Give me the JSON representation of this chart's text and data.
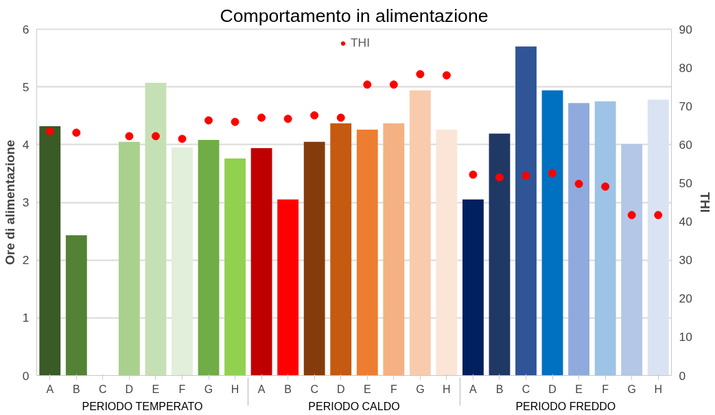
{
  "chart_data": {
    "type": "bar",
    "title": "Comportamento in alimentazione",
    "categories": [
      "A",
      "B",
      "C",
      "D",
      "E",
      "F",
      "G",
      "H",
      "A",
      "B",
      "C",
      "D",
      "E",
      "F",
      "G",
      "H",
      "A",
      "B",
      "C",
      "D",
      "E",
      "F",
      "G",
      "H"
    ],
    "annotations": [
      "PERIODO TEMPERATO",
      "PERIODO CALDO",
      "PERIODO FREDDO"
    ],
    "ylabel": "Ore di alimentazione",
    "y2label": "THI",
    "ylim": [
      0,
      6
    ],
    "yticks": [
      0,
      1,
      2,
      3,
      4,
      5,
      6
    ],
    "y2lim": [
      0,
      90
    ],
    "y2ticks": [
      0,
      10,
      20,
      30,
      40,
      50,
      60,
      70,
      80,
      90
    ],
    "grid": "y",
    "legend": "top",
    "series": [
      {
        "colors": [
          "#3a5a26",
          "#548235",
          "#a9d18e",
          "#a9d18e",
          "#c5e0b4",
          "#e2efda",
          "#70ad47",
          "#92d050",
          "#c00000",
          "#ff0000",
          "#843c0c",
          "#c55a11",
          "#ed7d31",
          "#f4b183",
          "#f8cbad",
          "#fbe5d6",
          "#002060",
          "#203864",
          "#2f5597",
          "#0070c0",
          "#8faadc",
          "#9dc3e6",
          "#b4c7e7",
          "#dae3f3"
        ],
        "values": [
          4.32,
          2.43,
          null,
          4.05,
          5.07,
          3.95,
          4.08,
          3.76,
          3.94,
          3.05,
          4.05,
          4.37,
          4.26,
          4.37,
          4.94,
          4.26,
          3.05,
          4.19,
          5.7,
          4.94,
          4.72,
          4.75,
          4.01,
          4.78
        ]
      },
      {
        "type": "scatter",
        "name": "THI",
        "color": "#ff0000",
        "axis": "y2",
        "marker": "circle",
        "values": [
          63.5,
          63.1,
          null,
          62.2,
          62.2,
          61.5,
          66.3,
          65.9,
          67.0,
          66.7,
          67.6,
          67.0,
          75.6,
          75.6,
          78.3,
          78.0,
          52.2,
          51.5,
          51.9,
          52.6,
          49.8,
          49.1,
          41.7,
          41.7
        ]
      }
    ]
  }
}
